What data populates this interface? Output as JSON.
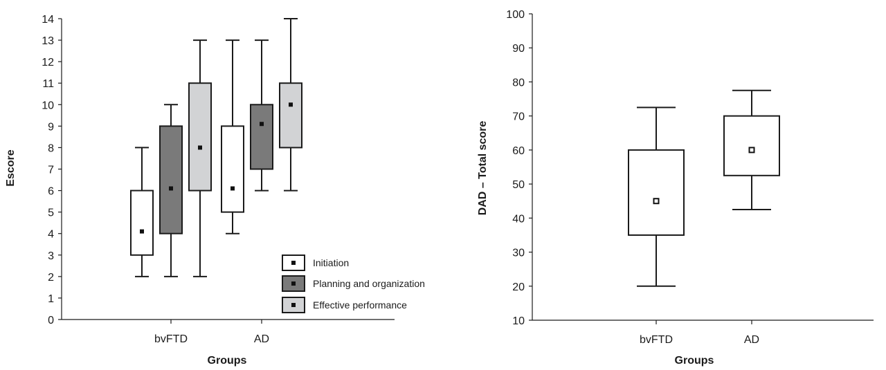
{
  "chart_data": [
    {
      "type": "box",
      "ylabel": "Escore",
      "xlabel": "Groups",
      "ylim": [
        0,
        14
      ],
      "yticks": [
        0,
        1,
        2,
        3,
        4,
        5,
        6,
        7,
        8,
        9,
        10,
        11,
        12,
        13,
        14
      ],
      "categories": [
        "bvFTD",
        "AD"
      ],
      "legend": "bottom-right",
      "series": [
        {
          "name": "Initiation",
          "color": "#ffffff",
          "boxes": [
            {
              "category": "bvFTD",
              "min": 2,
              "q1": 3,
              "median": 4.1,
              "q3": 6,
              "max": 8
            },
            {
              "category": "AD",
              "min": 4,
              "q1": 5,
              "median": 6.1,
              "q3": 9,
              "max": 13
            }
          ]
        },
        {
          "name": "Planning and organization",
          "color": "#7a7a7a",
          "boxes": [
            {
              "category": "bvFTD",
              "min": 2,
              "q1": 4,
              "median": 6.1,
              "q3": 9,
              "max": 10
            },
            {
              "category": "AD",
              "min": 6,
              "q1": 7,
              "median": 9.1,
              "q3": 10,
              "max": 13
            }
          ]
        },
        {
          "name": "Effective performance",
          "color": "#d2d3d5",
          "boxes": [
            {
              "category": "bvFTD",
              "min": 2,
              "q1": 6,
              "median": 8,
              "q3": 11,
              "max": 13
            },
            {
              "category": "AD",
              "min": 6,
              "q1": 8,
              "median": 10,
              "q3": 11,
              "max": 14
            }
          ]
        }
      ]
    },
    {
      "type": "box",
      "ylabel": "DAD – Total score",
      "xlabel": "Groups",
      "ylim": [
        10,
        100
      ],
      "yticks": [
        10,
        20,
        30,
        40,
        50,
        60,
        70,
        80,
        90,
        100
      ],
      "categories": [
        "bvFTD",
        "AD"
      ],
      "series": [
        {
          "name": "",
          "color": "#ffffff",
          "boxes": [
            {
              "category": "bvFTD",
              "min": 20,
              "q1": 35,
              "median": 45,
              "q3": 60,
              "max": 72.5
            },
            {
              "category": "AD",
              "min": 42.5,
              "q1": 52.5,
              "median": 60,
              "q3": 70,
              "max": 77.5
            }
          ]
        }
      ]
    }
  ]
}
